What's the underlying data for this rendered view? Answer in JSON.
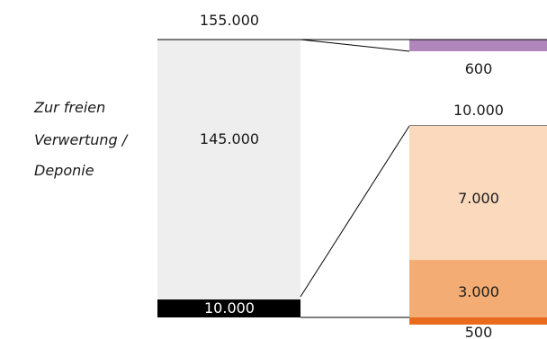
{
  "chart_data": {
    "type": "bar",
    "side_label": [
      "Zur freien",
      "Verwertung /",
      "Deponie"
    ],
    "total_label": "155.000",
    "left_bar": {
      "segments": [
        {
          "value": 145000,
          "label": "145.000",
          "color": "#eeeeee",
          "text_color": "#1a1a1a"
        },
        {
          "value": 10000,
          "label": "10.000",
          "color": "#000000",
          "text_color": "#ffffff"
        }
      ]
    },
    "right_top": {
      "segments": [
        {
          "value": 600,
          "label": "600",
          "color": "#b187bb"
        }
      ]
    },
    "right_middle": {
      "total_label": "10.000",
      "segments": [
        {
          "value": 7000,
          "label": "7.000",
          "color": "#fad9bd"
        },
        {
          "value": 3000,
          "label": "3.000",
          "color": "#f3ad74"
        }
      ]
    },
    "right_bottom": {
      "segments": [
        {
          "value": 500,
          "label": "500",
          "color": "#ea6a1e"
        }
      ]
    }
  }
}
